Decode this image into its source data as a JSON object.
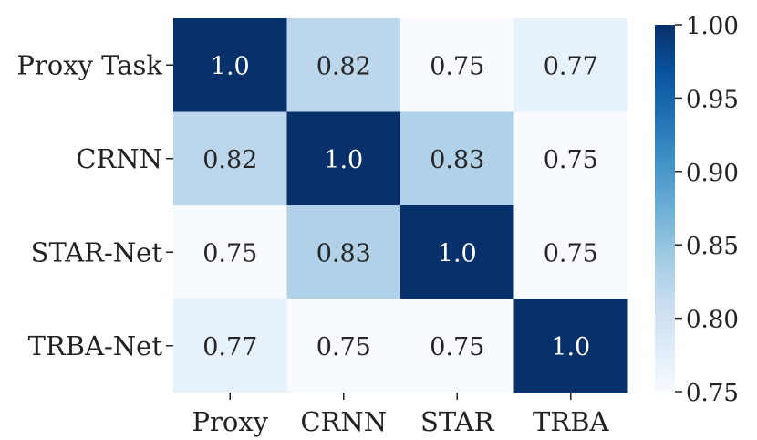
{
  "chart_data": {
    "type": "heatmap",
    "row_labels": [
      "Proxy Task",
      "CRNN",
      "STAR-Net",
      "TRBA-Net"
    ],
    "col_labels": [
      "Proxy",
      "CRNN",
      "STAR",
      "TRBA"
    ],
    "values": [
      [
        1.0,
        0.82,
        0.75,
        0.77
      ],
      [
        0.82,
        1.0,
        0.83,
        0.75
      ],
      [
        0.75,
        0.83,
        1.0,
        0.75
      ],
      [
        0.77,
        0.75,
        0.75,
        1.0
      ]
    ],
    "cell_text": [
      [
        "1.0",
        "0.82",
        "0.75",
        "0.77"
      ],
      [
        "0.82",
        "1.0",
        "0.83",
        "0.75"
      ],
      [
        "0.75",
        "0.83",
        "1.0",
        "0.75"
      ],
      [
        "0.77",
        "0.75",
        "0.75",
        "1.0"
      ]
    ],
    "colorbar": {
      "min": 0.75,
      "max": 1.0,
      "ticks": [
        "0.75",
        "0.80",
        "0.85",
        "0.90",
        "0.95",
        "1.00"
      ],
      "colormap": "Blues",
      "colors": [
        "#f7fbff",
        "#deebf7",
        "#c6dbef",
        "#9ecae1",
        "#6baed6",
        "#4292c6",
        "#2171b5",
        "#08519c",
        "#08306b"
      ]
    }
  }
}
